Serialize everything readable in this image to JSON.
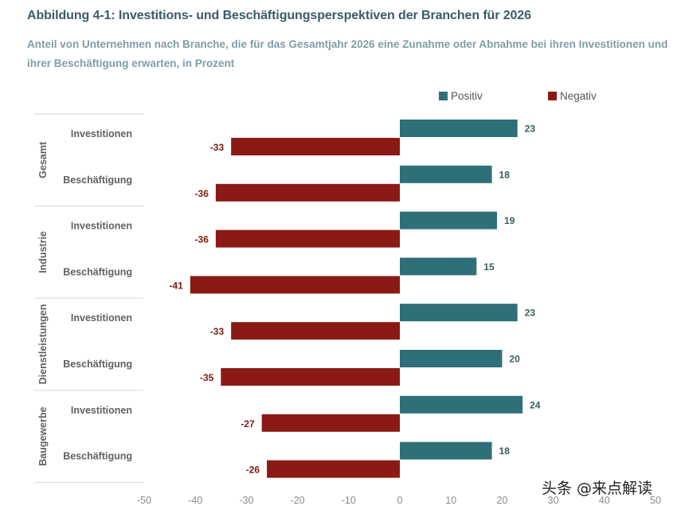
{
  "title": "Abbildung 4-1: Investitions- und Beschäftigungsperspektiven der Branchen für 2026",
  "subtitle": "Anteil von Unternehmen nach Branche, die für das Gesamtjahr 2026 eine Zunahme oder Abnahme bei ihren Investitionen und ihrer Beschäftigung erwarten, in Prozent",
  "watermark": "头条 @来点解读",
  "colors": {
    "positive": "#2f6f78",
    "negative": "#8b1a14",
    "axis_text": "#8a8a8a",
    "label_text": "#555555"
  },
  "chart_data": {
    "type": "bar",
    "orientation": "horizontal",
    "title": "Abbildung 4-1: Investitions- und Beschäftigungsperspektiven der Branchen für 2026",
    "subtitle": "Anteil von Unternehmen nach Branche, die für das Gesamtjahr 2026 eine Zunahme oder Abnahme bei ihren Investitionen und ihrer Beschäftigung erwarten, in Prozent",
    "xlabel": "",
    "ylabel": "",
    "xlim": [
      -50,
      50
    ],
    "xticks": [
      -50,
      -40,
      -30,
      -20,
      -10,
      0,
      10,
      20,
      30,
      40,
      50
    ],
    "legend": {
      "position": "top-right",
      "entries": [
        "Positiv",
        "Negativ"
      ]
    },
    "groups": [
      {
        "name": "Gesamt",
        "categories": [
          "Investitionen",
          "Beschäftigung"
        ]
      },
      {
        "name": "Industrie",
        "categories": [
          "Investitionen",
          "Beschäftigung"
        ]
      },
      {
        "name": "Dienstleistungen",
        "categories": [
          "Investitionen",
          "Beschäftigung"
        ]
      },
      {
        "name": "Baugewerbe",
        "categories": [
          "Investitionen",
          "Beschäftigung"
        ]
      }
    ],
    "series": [
      {
        "name": "Positiv",
        "values": [
          23,
          18,
          19,
          15,
          23,
          20,
          24,
          18
        ]
      },
      {
        "name": "Negativ",
        "values": [
          -33,
          -36,
          -36,
          -41,
          -33,
          -35,
          -27,
          -26
        ]
      }
    ]
  }
}
